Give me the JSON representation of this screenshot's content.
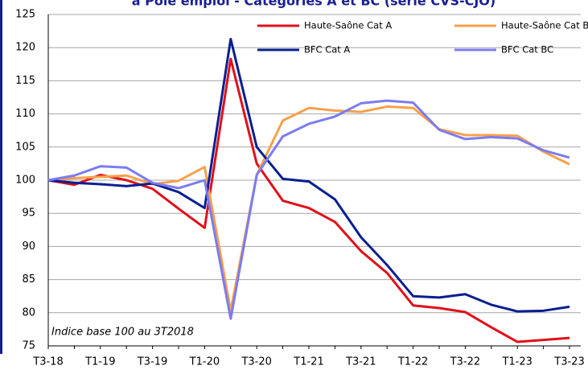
{
  "chart_data": {
    "type": "line",
    "title": "à Pôle emploi - Catégories A et BC (série CVS-CJO)",
    "annotation": "Indice base 100 au 3T2018",
    "categories": [
      "T3-18",
      null,
      "T1-19",
      null,
      "T3-19",
      null,
      "T1-20",
      null,
      "T3-20",
      null,
      "T1-21",
      null,
      "T3-21",
      null,
      "T1-22",
      null,
      "T3-22",
      null,
      "T1-23",
      null,
      "T3-23"
    ],
    "series": [
      {
        "name": "Haute-Saône  Cat A",
        "color": "#e0101a",
        "values": [
          100,
          99.3,
          100.8,
          100.0,
          98.7,
          95.7,
          92.8,
          118.3,
          102.5,
          96.9,
          95.8,
          93.7,
          89.3,
          86.0,
          81.1,
          80.7,
          80.1,
          77.8,
          75.6,
          75.9,
          76.2
        ]
      },
      {
        "name": "Haute-Saône  Cat BC",
        "color": "#f7a04a",
        "values": [
          100,
          100.3,
          100.5,
          100.7,
          99.4,
          99.9,
          102.0,
          80.3,
          100.8,
          109.0,
          110.9,
          110.5,
          110.3,
          111.1,
          110.9,
          107.7,
          106.8,
          106.8,
          106.7,
          104.3,
          102.4
        ]
      },
      {
        "name": "BFC Cat A",
        "color": "#0a1f8f",
        "values": [
          100,
          99.6,
          99.4,
          99.1,
          99.5,
          98.2,
          95.8,
          121.3,
          105.0,
          100.2,
          99.8,
          97.1,
          91.4,
          87.2,
          82.5,
          82.3,
          82.8,
          81.2,
          80.2,
          80.3,
          80.9
        ]
      },
      {
        "name": "BFC Cat BC",
        "color": "#7b7cf2",
        "values": [
          100,
          100.7,
          102.1,
          101.9,
          99.6,
          98.8,
          100.0,
          79.1,
          100.8,
          106.6,
          108.5,
          109.6,
          111.6,
          112.0,
          111.7,
          107.6,
          106.2,
          106.5,
          106.3,
          104.5,
          103.4
        ]
      }
    ],
    "ylim": [
      75,
      125
    ],
    "yticks": [
      75,
      80,
      85,
      90,
      95,
      100,
      105,
      110,
      115,
      120,
      125
    ],
    "grid": true
  }
}
